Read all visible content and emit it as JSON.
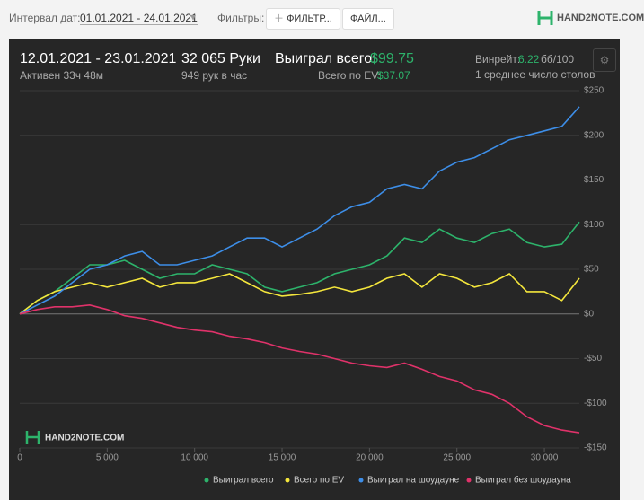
{
  "header": {
    "date_label": "Интервал дат:",
    "date_range": "01.01.2021 - 24.01.2021",
    "filters_label": "Фильтры:",
    "filter_button": "ФИЛЬТР...",
    "file_button": "ФАЙЛ...",
    "logo": "HAND2NOTE.COM"
  },
  "stats": {
    "period": "12.01.2021 - 23.01.2021",
    "active": "Активен 33ч 48м",
    "hands": "32 065 Руки",
    "hands_per_hour": "949 рук в час",
    "won_label": "Выиграл всего:",
    "won_value": "$99.75",
    "ev_label": "Всего по EV:",
    "ev_value": "$37.07",
    "winrate_label": "Винрейт:",
    "winrate_value": "6.22",
    "winrate_unit": "бб/100",
    "tables": "1 среднее число столов"
  },
  "watermark": "HAND2NOTE.COM",
  "chart_data": {
    "type": "line",
    "x": [
      0,
      1000,
      2000,
      3000,
      4000,
      5000,
      6000,
      7000,
      8000,
      9000,
      10000,
      11000,
      12000,
      13000,
      14000,
      15000,
      16000,
      17000,
      18000,
      19000,
      20000,
      21000,
      22000,
      23000,
      24000,
      25000,
      26000,
      27000,
      28000,
      29000,
      30000,
      31000,
      32000
    ],
    "series": [
      {
        "name": "Выиграл всего",
        "color": "#2db36b",
        "values": [
          0,
          15,
          25,
          40,
          55,
          55,
          60,
          50,
          40,
          45,
          45,
          55,
          50,
          45,
          30,
          25,
          30,
          35,
          45,
          50,
          55,
          65,
          85,
          80,
          95,
          85,
          80,
          90,
          95,
          80,
          75,
          78,
          103
        ]
      },
      {
        "name": "Всего по EV",
        "color": "#f4e63c",
        "values": [
          0,
          15,
          25,
          30,
          35,
          30,
          35,
          40,
          30,
          35,
          35,
          40,
          45,
          35,
          25,
          20,
          22,
          25,
          30,
          25,
          30,
          40,
          45,
          30,
          45,
          40,
          30,
          35,
          45,
          25,
          25,
          15,
          40
        ]
      },
      {
        "name": "Выиграл на шоудауне",
        "color": "#3d8ee8",
        "values": [
          0,
          10,
          20,
          35,
          50,
          55,
          65,
          70,
          55,
          55,
          60,
          65,
          75,
          85,
          85,
          75,
          85,
          95,
          110,
          120,
          125,
          140,
          145,
          140,
          160,
          170,
          175,
          185,
          195,
          200,
          205,
          210,
          232
        ]
      },
      {
        "name": "Выиграл без шоудауна",
        "color": "#e0326a",
        "values": [
          0,
          5,
          8,
          8,
          10,
          5,
          -2,
          -5,
          -10,
          -15,
          -18,
          -20,
          -25,
          -28,
          -32,
          -38,
          -42,
          -45,
          -50,
          -55,
          -58,
          -60,
          -55,
          -62,
          -70,
          -75,
          -85,
          -90,
          -100,
          -115,
          -125,
          -130,
          -133
        ]
      }
    ],
    "xlim": [
      0,
      32000
    ],
    "xticks": [
      0,
      {
        "value": 5000,
        "label": "5 000"
      },
      {
        "value": 10000,
        "label": "10 000"
      },
      {
        "value": 15000,
        "label": "15 000"
      },
      {
        "value": 20000,
        "label": "20 000"
      },
      {
        "value": 25000,
        "label": "25 000"
      },
      {
        "value": 30000,
        "label": "30 000"
      }
    ],
    "ylim": [
      -150,
      250
    ],
    "yticks": [
      {
        "value": -150,
        "label": "-$150"
      },
      {
        "value": -100,
        "label": "-$100"
      },
      {
        "value": -50,
        "label": "-$50"
      },
      {
        "value": 0,
        "label": "$0"
      },
      {
        "value": 50,
        "label": "$50"
      },
      {
        "value": 100,
        "label": "$100"
      },
      {
        "value": 150,
        "label": "$150"
      },
      {
        "value": 200,
        "label": "$200"
      },
      {
        "value": 250,
        "label": "$250"
      }
    ],
    "grid": true,
    "legend": "bottom"
  }
}
